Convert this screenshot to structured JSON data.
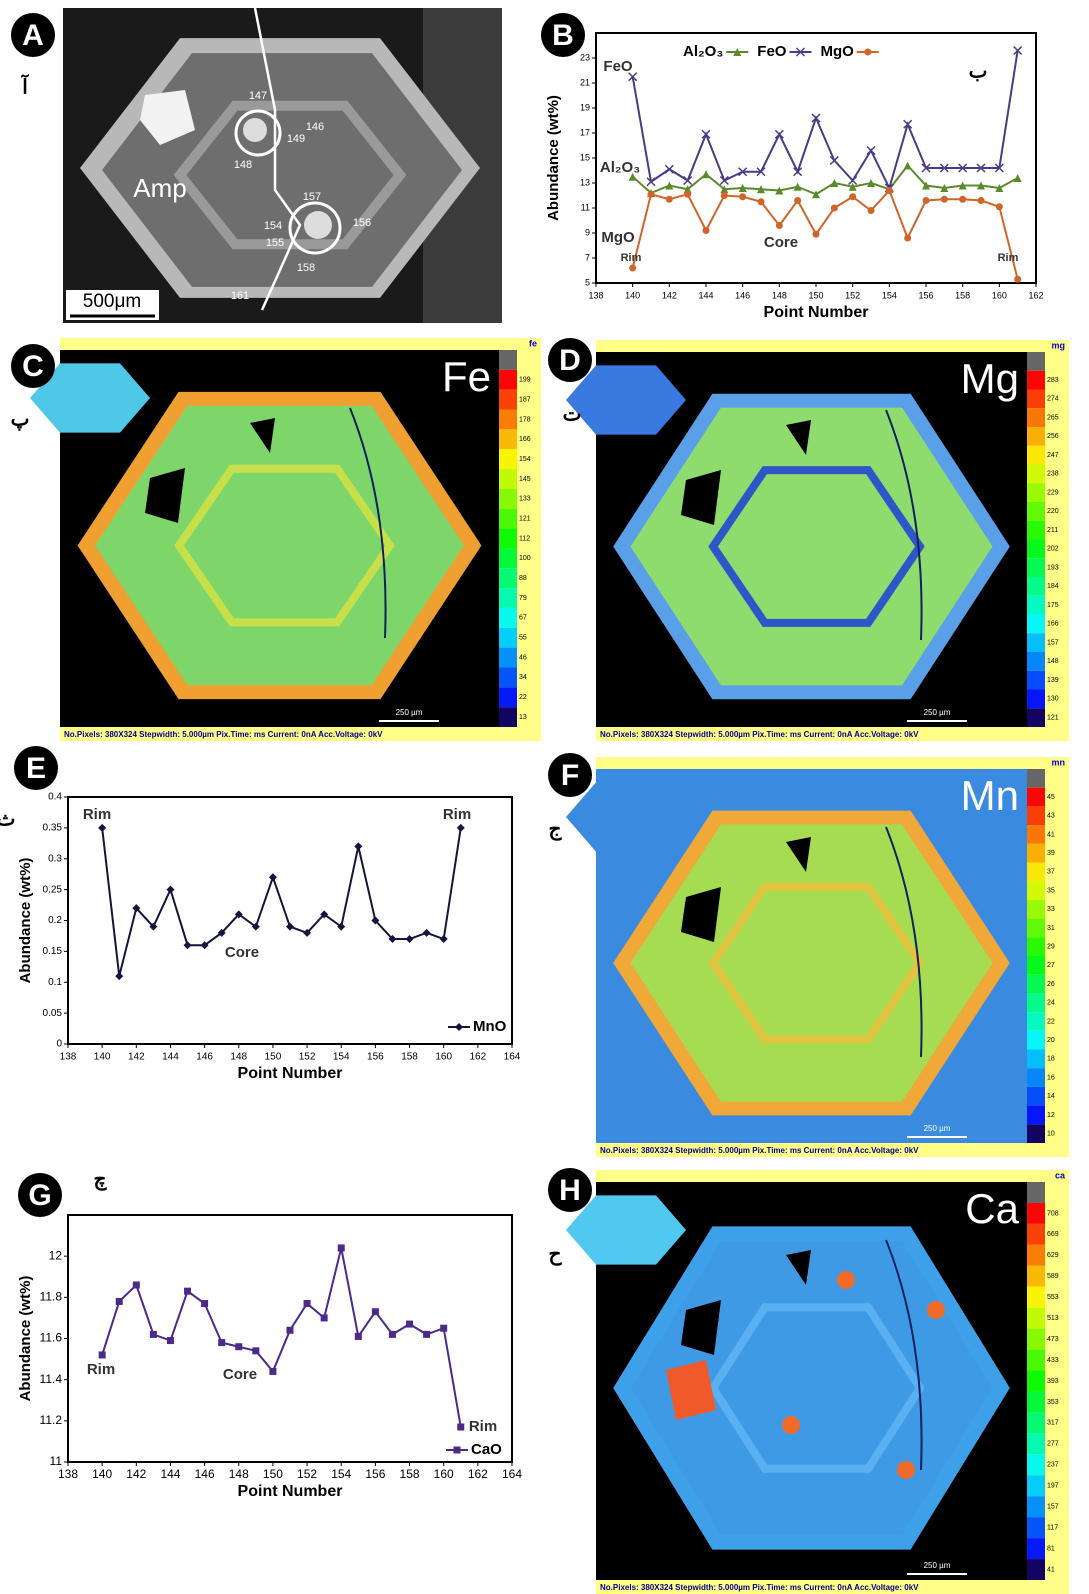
{
  "panels": {
    "A": {
      "letter": "A",
      "persian": "آ",
      "labels": [
        "147",
        "146",
        "149",
        "148",
        "157",
        "154",
        "155",
        "156",
        "158",
        "161",
        "Amp"
      ],
      "scale_bar": "500μm"
    },
    "C": {
      "letter": "C",
      "persian": "پ",
      "element": "Fe",
      "code": "fe",
      "scale": [
        199,
        187,
        178,
        166,
        154,
        145,
        133,
        121,
        112,
        100,
        88,
        79,
        67,
        55,
        46,
        34,
        22,
        13
      ],
      "scale_bar": "250 µm",
      "footer": "No.Pixels: 380X324   Stepwidth: 5.000µm   Pix.Time: ms     Current: 0nA   Acc.Voltage: 0kV"
    },
    "D": {
      "letter": "D",
      "persian": "ت",
      "element": "Mg",
      "code": "mg",
      "scale": [
        283,
        274,
        265,
        256,
        247,
        238,
        229,
        220,
        211,
        202,
        193,
        184,
        175,
        166,
        157,
        148,
        139,
        130,
        121
      ],
      "scale_bar": "250 µm",
      "footer": "No.Pixels: 380X324   Stepwidth: 5.000µm   Pix.Time: ms     Current: 0nA   Acc.Voltage: 0kV"
    },
    "F": {
      "letter": "F",
      "persian": "ج",
      "element": "Mn",
      "code": "mn",
      "scale": [
        45,
        43,
        41,
        39,
        37,
        35,
        33,
        31,
        29,
        27,
        26,
        24,
        22,
        20,
        18,
        16,
        14,
        12,
        10
      ],
      "scale_bar": "250 µm",
      "footer": "No.Pixels: 380X324   Stepwidth: 5.000µm   Pix.Time: ms     Current: 0nA   Acc.Voltage: 0kV"
    },
    "H": {
      "letter": "H",
      "persian": "ح",
      "element": "Ca",
      "code": "ca",
      "scale": [
        708,
        669,
        629,
        589,
        553,
        513,
        473,
        433,
        393,
        353,
        317,
        277,
        237,
        197,
        157,
        117,
        81,
        41
      ],
      "scale_bar": "250 µm",
      "footer": "No.Pixels: 380X324   Stepwidth: 5.000µm   Pix.Time: ms     Current: 0nA   Acc.Voltage: 0kV"
    }
  },
  "chart_data": [
    {
      "type": "line",
      "panel": "B",
      "persian": "ب",
      "x_label": "Point Number",
      "y_label": "Abundance (wt%)",
      "x": [
        140,
        141,
        142,
        143,
        144,
        145,
        146,
        147,
        148,
        149,
        150,
        151,
        152,
        153,
        154,
        155,
        156,
        157,
        158,
        159,
        160,
        161
      ],
      "series": [
        {
          "name": "Al₂O₃",
          "color": "#5b8a2b",
          "marker": "triangle",
          "values": [
            13.5,
            12.2,
            12.8,
            12.5,
            13.7,
            12.5,
            12.6,
            12.5,
            12.4,
            12.7,
            12.1,
            13.0,
            12.7,
            13.0,
            12.5,
            14.4,
            12.8,
            12.6,
            12.8,
            12.8,
            12.6,
            13.4
          ]
        },
        {
          "name": "FeO",
          "color": "#4b3a86",
          "marker": "x",
          "values": [
            21.5,
            13.1,
            14.1,
            13.2,
            16.9,
            13.2,
            13.9,
            13.9,
            16.9,
            13.9,
            18.2,
            14.8,
            13.2,
            15.6,
            12.6,
            17.7,
            14.2,
            14.2,
            14.2,
            14.2,
            14.2,
            23.6
          ]
        },
        {
          "name": "MgO",
          "color": "#d0652a",
          "marker": "circle",
          "values": [
            6.2,
            12.1,
            11.7,
            12.1,
            9.2,
            12.0,
            11.9,
            11.5,
            9.6,
            11.6,
            8.9,
            11.0,
            11.9,
            10.8,
            12.4,
            8.6,
            11.6,
            11.7,
            11.7,
            11.6,
            11.1,
            5.3
          ]
        }
      ],
      "xlim": [
        138,
        162
      ],
      "xticks": [
        138,
        140,
        142,
        144,
        146,
        148,
        150,
        152,
        154,
        156,
        158,
        160,
        162
      ],
      "ylim": [
        5,
        25
      ],
      "yticks": [
        5,
        7,
        9,
        11,
        13,
        15,
        17,
        19,
        21,
        23
      ],
      "legend": "top",
      "annotations": [
        "FeO",
        "Al₂O₃",
        "MgO",
        "Core",
        "Rim",
        "Rim"
      ]
    },
    {
      "type": "line",
      "panel": "E",
      "persian": "ث",
      "x_label": "Point Number",
      "y_label": "Abundance (wt%)",
      "x": [
        140,
        141,
        142,
        143,
        144,
        145,
        146,
        147,
        148,
        149,
        150,
        151,
        152,
        153,
        154,
        155,
        156,
        157,
        158,
        159,
        160,
        161
      ],
      "series": [
        {
          "name": "MnO",
          "color": "#14143c",
          "marker": "diamond",
          "values": [
            0.35,
            0.11,
            0.22,
            0.19,
            0.25,
            0.16,
            0.16,
            0.18,
            0.21,
            0.19,
            0.27,
            0.19,
            0.18,
            0.21,
            0.19,
            0.32,
            0.2,
            0.17,
            0.17,
            0.18,
            0.17,
            0.35
          ]
        }
      ],
      "xlim": [
        138,
        164
      ],
      "xticks": [
        138,
        140,
        142,
        144,
        146,
        148,
        150,
        152,
        154,
        156,
        158,
        160,
        162,
        164
      ],
      "ylim": [
        0,
        0.4
      ],
      "yticks": [
        0,
        0.05,
        0.1,
        0.15,
        0.2,
        0.25,
        0.3,
        0.35,
        0.4
      ],
      "legend": "lower right",
      "annotations": [
        "Rim",
        "Rim",
        "Core"
      ]
    },
    {
      "type": "line",
      "panel": "G",
      "persian": "چ",
      "x_label": "Point Number",
      "y_label": "Abundance (wt%)",
      "x": [
        140,
        141,
        142,
        143,
        144,
        145,
        146,
        147,
        148,
        149,
        150,
        151,
        152,
        153,
        154,
        155,
        156,
        157,
        158,
        159,
        160,
        161
      ],
      "series": [
        {
          "name": "CaO",
          "color": "#4b2a8a",
          "marker": "square",
          "values": [
            11.52,
            11.78,
            11.86,
            11.62,
            11.59,
            11.83,
            11.77,
            11.58,
            11.56,
            11.54,
            11.44,
            11.64,
            11.77,
            11.7,
            12.04,
            11.61,
            11.73,
            11.62,
            11.67,
            11.62,
            11.65,
            11.17
          ]
        }
      ],
      "xlim": [
        138,
        164
      ],
      "xticks": [
        138,
        140,
        142,
        144,
        146,
        148,
        150,
        152,
        154,
        156,
        158,
        160,
        162,
        164
      ],
      "ylim": [
        11,
        12.2
      ],
      "yticks": [
        11,
        11.2,
        11.4,
        11.6,
        11.8,
        12
      ],
      "legend": "lower right",
      "annotations": [
        "Rim",
        "Core",
        "Rim"
      ]
    }
  ]
}
